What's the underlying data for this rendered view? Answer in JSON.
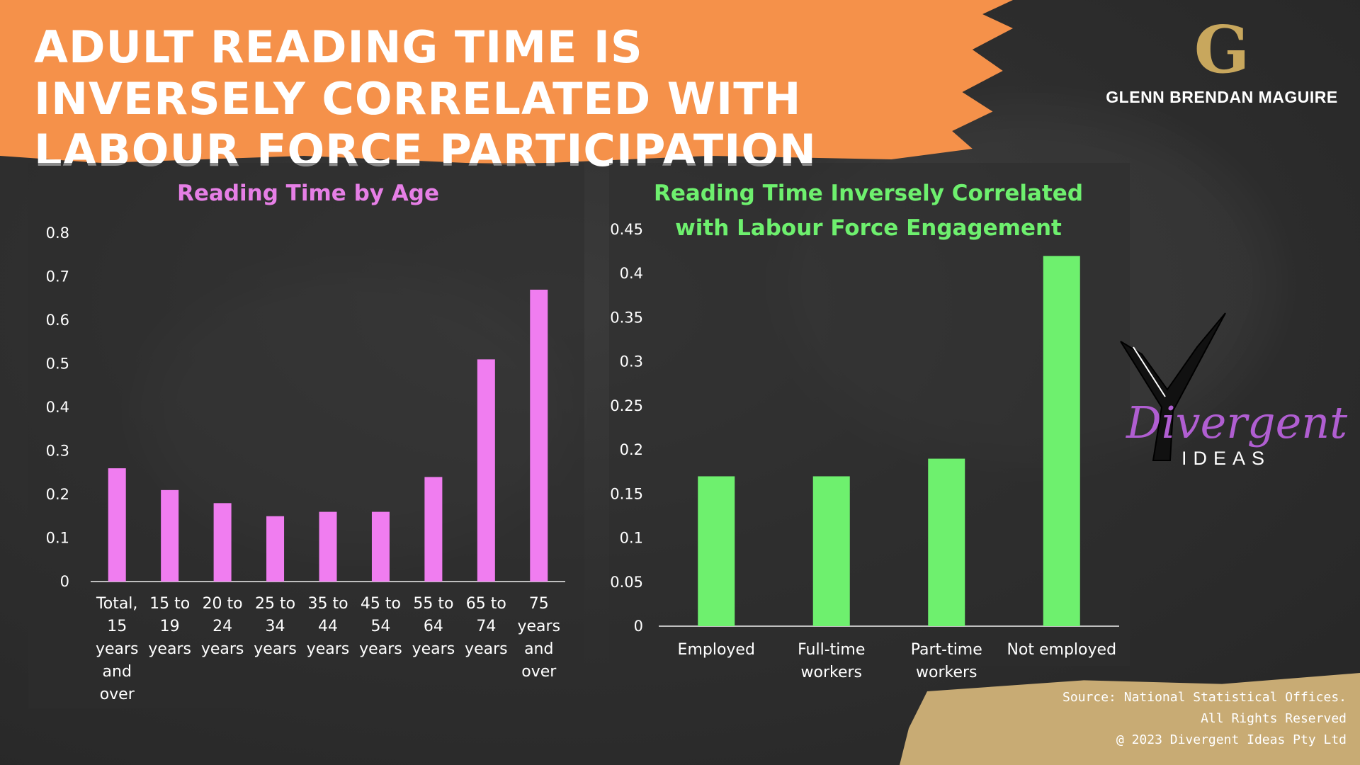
{
  "title": "ADULT READING TIME IS INVERSELY CORRELATED WITH LABOUR FORCE PARTICIPATION",
  "brand": {
    "logo_letter": "G",
    "name": "GLENN BRENDAN MAGUIRE"
  },
  "logo": {
    "word1": "Divergent",
    "word2": "IDEAS"
  },
  "footer": {
    "line1": "Source:  National Statistical Offices.",
    "line2": "All Rights Reserved",
    "line3": "@ 2023 Divergent Ideas Pty Ltd"
  },
  "colors": {
    "banner": "#f5914a",
    "age_bars": "#f07df0",
    "labour_bars": "#6ef06e",
    "footer": "#c8ab74"
  },
  "chart_data": [
    {
      "type": "bar",
      "title": "Reading Time by Age",
      "title_color": "#e67fe6",
      "bar_color": "#f07df0",
      "categories": [
        [
          "Total,",
          "15",
          "years",
          "and",
          "over"
        ],
        [
          "15 to",
          "19",
          "years"
        ],
        [
          "20 to",
          "24",
          "years"
        ],
        [
          "25 to",
          "34",
          "years"
        ],
        [
          "35 to",
          "44",
          "years"
        ],
        [
          "45 to",
          "54",
          "years"
        ],
        [
          "55 to",
          "64",
          "years"
        ],
        [
          "65 to",
          "74",
          "years"
        ],
        [
          "75",
          "years",
          "and",
          "over"
        ]
      ],
      "values": [
        0.26,
        0.21,
        0.18,
        0.15,
        0.16,
        0.16,
        0.24,
        0.51,
        0.67
      ],
      "ylim": [
        0,
        0.8
      ],
      "yticks": [
        "0",
        "0.1",
        "0.2",
        "0.3",
        "0.4",
        "0.5",
        "0.6",
        "0.7",
        "0.8"
      ],
      "grid": false
    },
    {
      "type": "bar",
      "title": [
        "Reading Time Inversely Correlated",
        "with Labour Force Engagement"
      ],
      "title_color": "#6ef06e",
      "bar_color": "#6ef06e",
      "categories": [
        [
          "Employed"
        ],
        [
          "Full-time",
          "workers"
        ],
        [
          "Part-time",
          "workers"
        ],
        [
          "Not employed"
        ]
      ],
      "values": [
        0.17,
        0.17,
        0.19,
        0.42
      ],
      "ylim": [
        0,
        0.45
      ],
      "yticks": [
        "0",
        "0.05",
        "0.1",
        "0.15",
        "0.2",
        "0.25",
        "0.3",
        "0.35",
        "0.4",
        "0.45"
      ],
      "grid": false
    }
  ]
}
